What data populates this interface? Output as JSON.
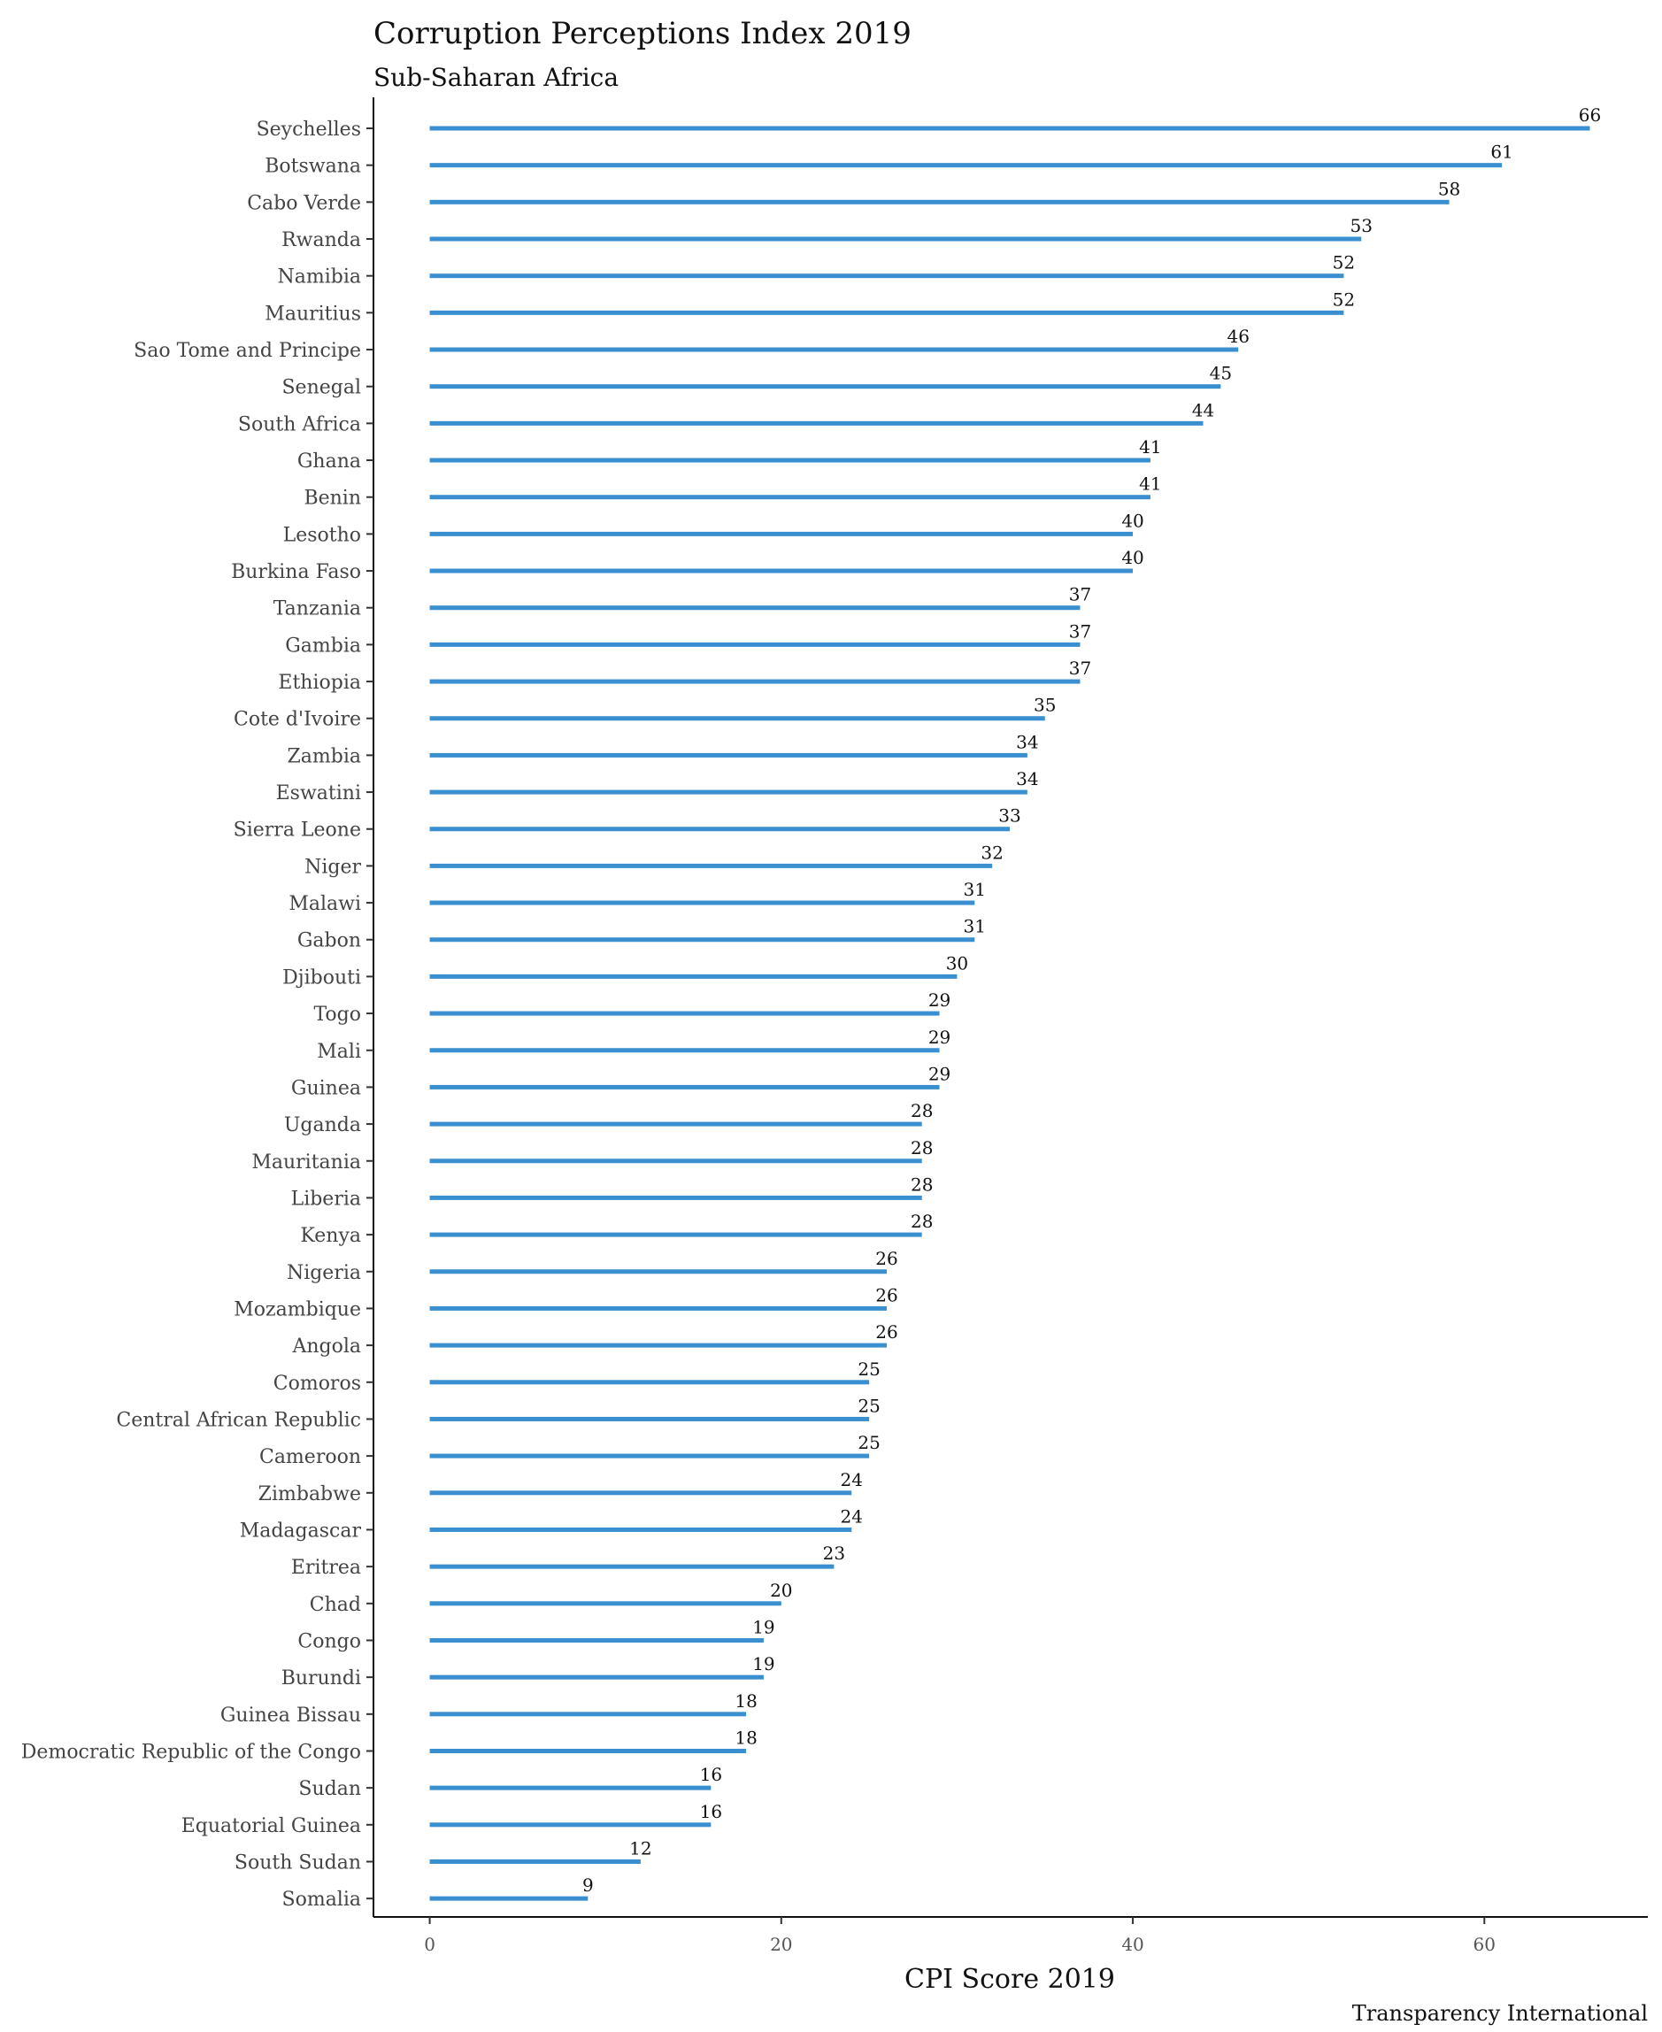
{
  "chart_data": {
    "type": "bar",
    "orientation": "horizontal",
    "title": "Corruption Perceptions Index 2019",
    "subtitle": "Sub-Saharan Africa",
    "xlabel": "CPI Score 2019",
    "ylabel": "",
    "caption": "Transparency International",
    "xlim": [
      -3.2,
      69.3
    ],
    "xticks": [
      0,
      20,
      40,
      60
    ],
    "grid": false,
    "legend": "none",
    "bar_color": "#3a8fd0",
    "categories": [
      "Seychelles",
      "Botswana",
      "Cabo Verde",
      "Rwanda",
      "Namibia",
      "Mauritius",
      "Sao Tome and Principe",
      "Senegal",
      "South Africa",
      "Ghana",
      "Benin",
      "Lesotho",
      "Burkina Faso",
      "Tanzania",
      "Gambia",
      "Ethiopia",
      "Cote d'Ivoire",
      "Zambia",
      "Eswatini",
      "Sierra Leone",
      "Niger",
      "Malawi",
      "Gabon",
      "Djibouti",
      "Togo",
      "Mali",
      "Guinea",
      "Uganda",
      "Mauritania",
      "Liberia",
      "Kenya",
      "Nigeria",
      "Mozambique",
      "Angola",
      "Comoros",
      "Central African Republic",
      "Cameroon",
      "Zimbabwe",
      "Madagascar",
      "Eritrea",
      "Chad",
      "Congo",
      "Burundi",
      "Guinea Bissau",
      "Democratic Republic of the Congo",
      "Sudan",
      "Equatorial Guinea",
      "South Sudan",
      "Somalia"
    ],
    "values": [
      66,
      61,
      58,
      53,
      52,
      52,
      46,
      45,
      44,
      41,
      41,
      40,
      40,
      37,
      37,
      37,
      35,
      34,
      34,
      33,
      32,
      31,
      31,
      30,
      29,
      29,
      29,
      28,
      28,
      28,
      28,
      26,
      26,
      26,
      25,
      25,
      25,
      24,
      24,
      23,
      20,
      19,
      19,
      18,
      18,
      16,
      16,
      12,
      9
    ]
  }
}
